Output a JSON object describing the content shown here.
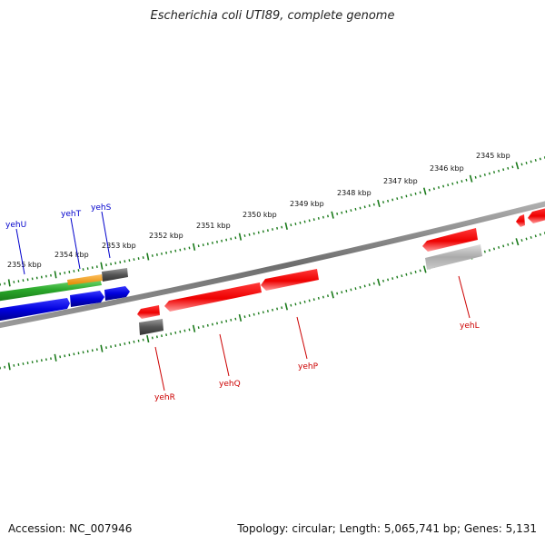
{
  "title": "Escherichia coli UTI89, complete genome",
  "footer": {
    "accession": "Accession: NC_007946",
    "summary": "Topology: circular; Length: 5,065,741 bp; Genes: 5,131"
  },
  "colors": {
    "forward_label": "#0000cc",
    "reverse_label": "#cc0000",
    "tick": "#1a7a1a",
    "backbone": "#7a7a7a"
  },
  "kbp_ticks": [
    "2355 kbp",
    "2354 kbp",
    "2353 kbp",
    "2352 kbp",
    "2351 kbp",
    "2350 kbp",
    "2349 kbp",
    "2348 kbp",
    "2347 kbp",
    "2346 kbp",
    "2345 kbp"
  ],
  "genes": [
    {
      "label": "yehU",
      "strand": "forward",
      "color": "blue"
    },
    {
      "label": "yehT",
      "strand": "forward",
      "color": "blue"
    },
    {
      "label": "yehS",
      "strand": "forward",
      "color": "blue"
    },
    {
      "label": "yehR",
      "strand": "reverse",
      "color": "red"
    },
    {
      "label": "yehQ",
      "strand": "reverse",
      "color": "red"
    },
    {
      "label": "yehP",
      "strand": "reverse",
      "color": "red"
    },
    {
      "label": "yehL",
      "strand": "reverse",
      "color": "red"
    }
  ]
}
